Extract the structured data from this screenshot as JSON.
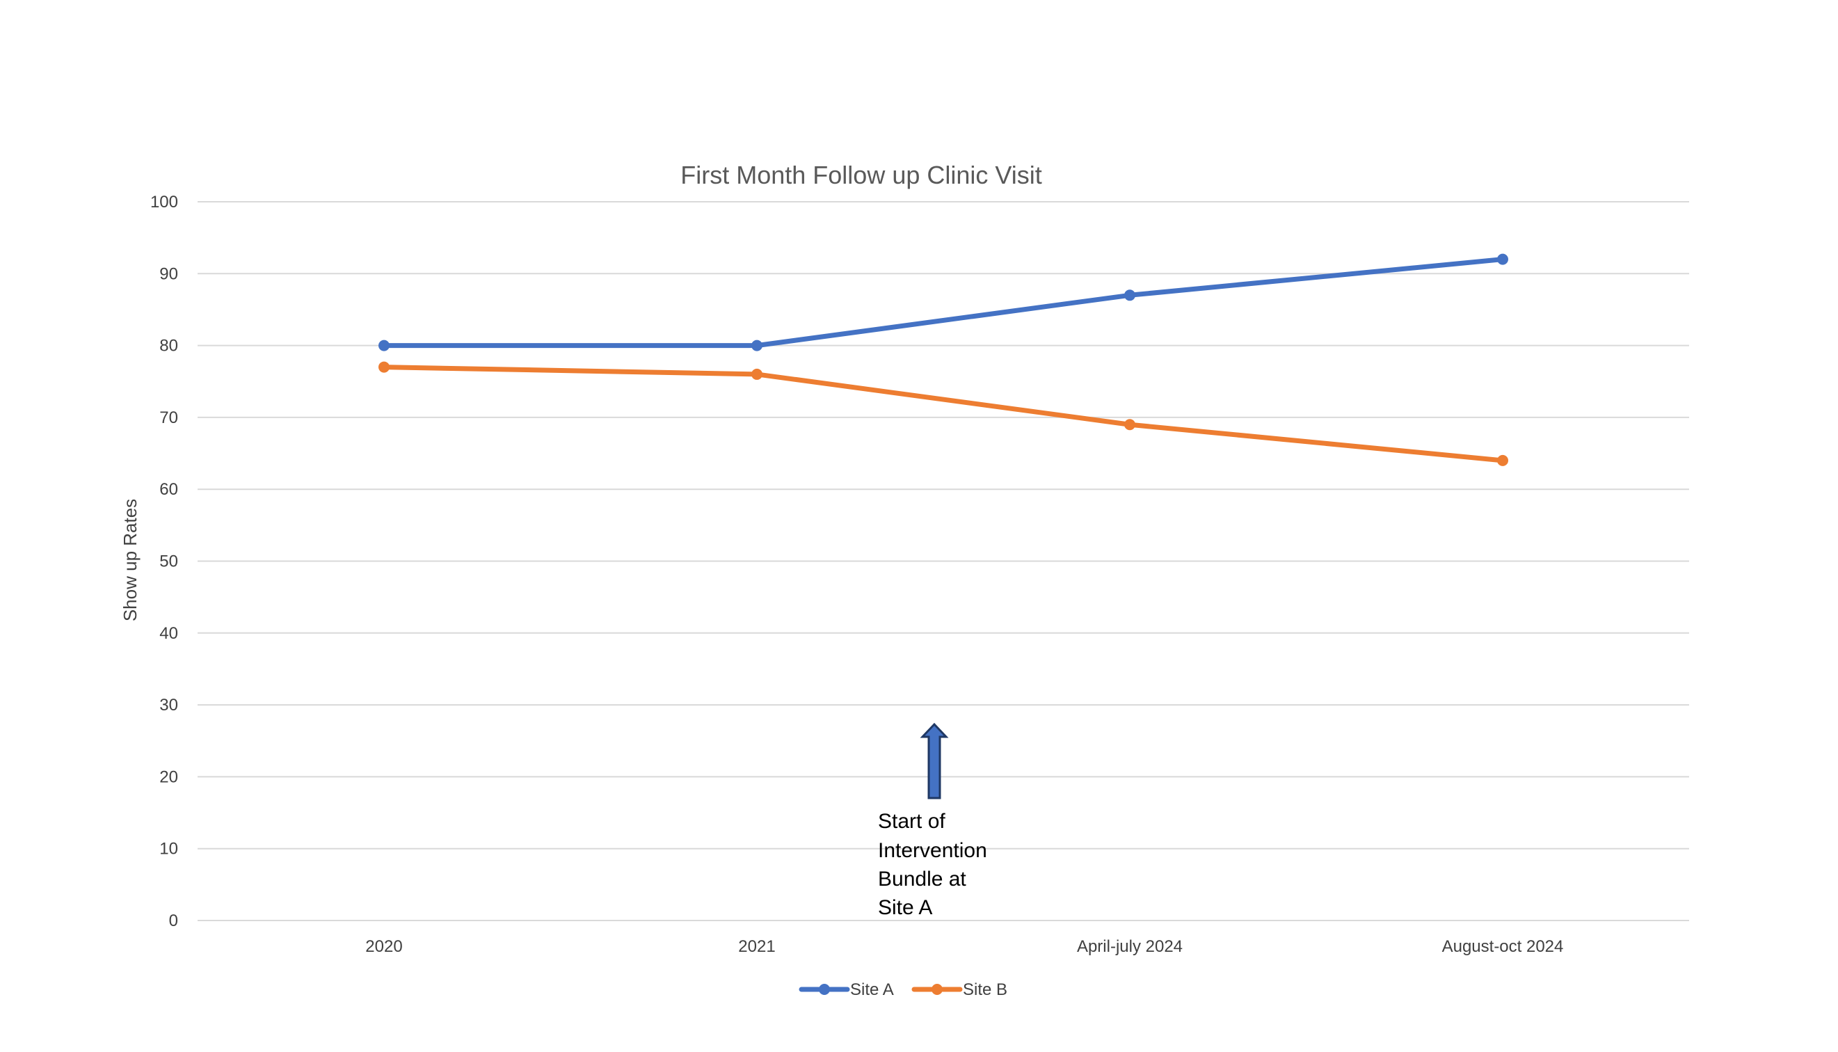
{
  "chart_data": {
    "type": "line",
    "title": "First Month Follow up Clinic Visit",
    "xlabel": "",
    "ylabel": "Show up Rates",
    "categories": [
      "2020",
      "2021",
      "April-july 2024",
      "August-oct 2024"
    ],
    "ylim": [
      0,
      100
    ],
    "yticks": [
      0,
      10,
      20,
      30,
      40,
      50,
      60,
      70,
      80,
      90,
      100
    ],
    "grid": true,
    "legend_position": "bottom",
    "series": [
      {
        "name": "Site A",
        "values": [
          80,
          80,
          87,
          92
        ],
        "color": "#4472C4"
      },
      {
        "name": "Site B",
        "values": [
          77,
          76,
          69,
          64
        ],
        "color": "#ED7D31"
      }
    ],
    "annotation": {
      "lines": [
        "Start of",
        "Intervention",
        "Bundle at",
        "Site A"
      ],
      "arrow_icon": "up-arrow-icon",
      "arrow_color": "#4472C4"
    }
  }
}
